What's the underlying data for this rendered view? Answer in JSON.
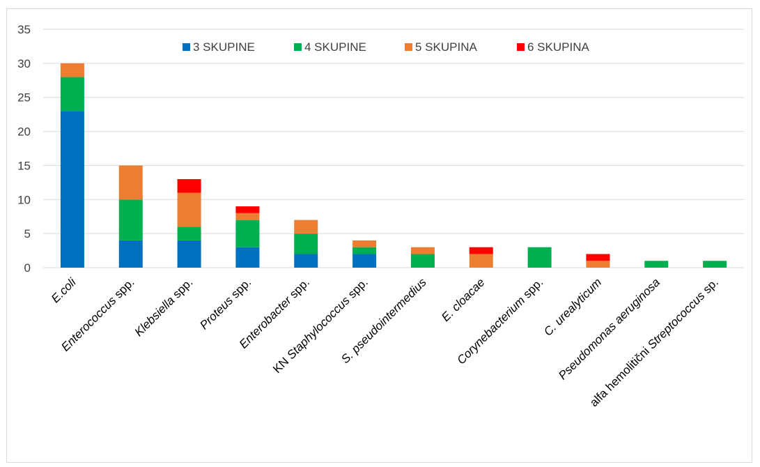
{
  "chart_data": {
    "type": "bar",
    "stacked": true,
    "title": "",
    "xlabel": "",
    "ylabel": "",
    "ylim": [
      0,
      35
    ],
    "yticks": [
      0,
      5,
      10,
      15,
      20,
      25,
      30,
      35
    ],
    "grid": true,
    "legend_position": "top",
    "categories": [
      {
        "prefix": "",
        "italic": "E.coli",
        "suffix": ""
      },
      {
        "prefix": "",
        "italic": "Enterococcus",
        "suffix": " spp."
      },
      {
        "prefix": "",
        "italic": "Klebsiella",
        "suffix": " spp."
      },
      {
        "prefix": "",
        "italic": "Proteus",
        "suffix": " spp."
      },
      {
        "prefix": "",
        "italic": "Enterobacter",
        "suffix": " spp."
      },
      {
        "prefix": "KN ",
        "italic": "Staphylococcus",
        "suffix": " spp."
      },
      {
        "prefix": "",
        "italic": "S. pseudointermedius",
        "suffix": ""
      },
      {
        "prefix": "",
        "italic": "E. cloacae",
        "suffix": ""
      },
      {
        "prefix": "",
        "italic": "Corynebacterium",
        "suffix": " spp."
      },
      {
        "prefix": "",
        "italic": "C. urealyticum",
        "suffix": ""
      },
      {
        "prefix": "",
        "italic": "Pseudomonas aeruginosa",
        "suffix": ""
      },
      {
        "prefix": "alfa hemolitični ",
        "italic": "Streptococcus",
        "suffix": " sp."
      }
    ],
    "series": [
      {
        "name": "3 SKUPINE",
        "color": "#0070C0",
        "values": [
          23,
          4,
          4,
          3,
          2,
          2,
          0,
          0,
          0,
          0,
          0,
          0
        ]
      },
      {
        "name": "4 SKUPINE",
        "color": "#00B050",
        "values": [
          5,
          6,
          2,
          4,
          3,
          1,
          2,
          0,
          3,
          0,
          1,
          1
        ]
      },
      {
        "name": "5 SKUPINA",
        "color": "#ED7D31",
        "values": [
          2,
          5,
          5,
          1,
          2,
          1,
          1,
          2,
          0,
          1,
          0,
          0
        ]
      },
      {
        "name": "6 SKUPINA",
        "color": "#FF0000",
        "values": [
          0,
          0,
          2,
          1,
          0,
          0,
          0,
          1,
          0,
          1,
          0,
          0
        ]
      }
    ]
  }
}
